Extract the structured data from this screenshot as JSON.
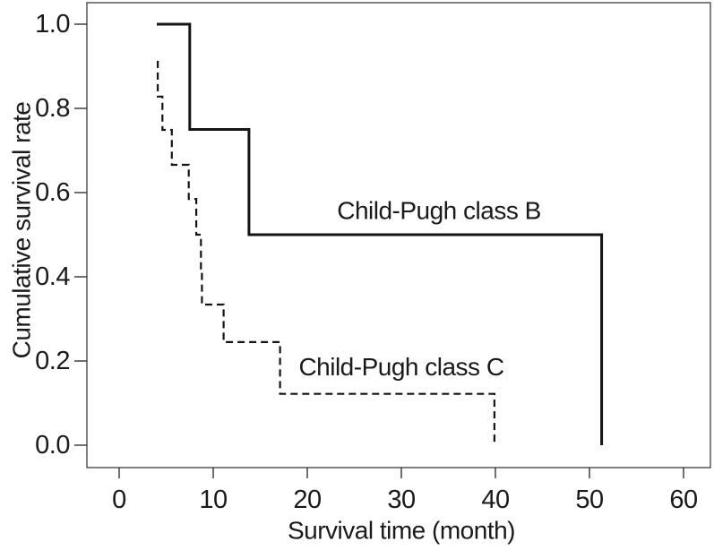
{
  "figure": {
    "background": "#ffffff",
    "text_color": "#1a1a1a",
    "curve_color": "#141414",
    "frame_color": "#4a4a4a"
  },
  "chart_data": {
    "type": "line",
    "subtype": "kaplan_meier_step",
    "title": "",
    "xlabel": "Survival time (month)",
    "ylabel": "Cumulative survival rate",
    "xlim": [
      0,
      60
    ],
    "ylim": [
      0.0,
      1.0
    ],
    "x_tick_values": [
      0,
      10,
      20,
      30,
      40,
      50,
      60
    ],
    "x_tick_labels": [
      "0",
      "10",
      "20",
      "30",
      "40",
      "50",
      "60"
    ],
    "y_tick_values": [
      0.0,
      0.2,
      0.4,
      0.6,
      0.8,
      1.0
    ],
    "y_tick_labels": [
      "0.0",
      "0.2",
      "0.4",
      "0.6",
      "0.8",
      "1.0"
    ],
    "grid": false,
    "legend_position": "inline-annotations",
    "series": [
      {
        "name": "Child-Pugh class B",
        "line_style": "solid",
        "color": "#141414",
        "points": [
          [
            4.0,
            1.0
          ],
          [
            7.5,
            1.0
          ],
          [
            7.5,
            0.75
          ],
          [
            13.8,
            0.75
          ],
          [
            13.8,
            0.5
          ],
          [
            51.3,
            0.5
          ],
          [
            51.3,
            0.0
          ]
        ]
      },
      {
        "name": "Child-Pugh class C",
        "line_style": "dashed",
        "color": "#141414",
        "points": [
          [
            4.1,
            0.913
          ],
          [
            4.1,
            0.828
          ],
          [
            4.6,
            0.828
          ],
          [
            4.6,
            0.749
          ],
          [
            5.6,
            0.749
          ],
          [
            5.6,
            0.666
          ],
          [
            7.4,
            0.666
          ],
          [
            7.4,
            0.585
          ],
          [
            8.2,
            0.585
          ],
          [
            8.2,
            0.5
          ],
          [
            8.7,
            0.5
          ],
          [
            8.7,
            0.413
          ],
          [
            8.8,
            0.413
          ],
          [
            8.8,
            0.334
          ],
          [
            11.1,
            0.334
          ],
          [
            11.1,
            0.245
          ],
          [
            17.1,
            0.245
          ],
          [
            17.1,
            0.122
          ],
          [
            39.9,
            0.122
          ],
          [
            39.9,
            0.0
          ]
        ]
      }
    ],
    "annotations": [
      {
        "text": "Child-Pugh class B",
        "x": 34.0,
        "y": 0.557
      },
      {
        "text": "Child-Pugh class C",
        "x": 30.0,
        "y": 0.186
      }
    ]
  }
}
